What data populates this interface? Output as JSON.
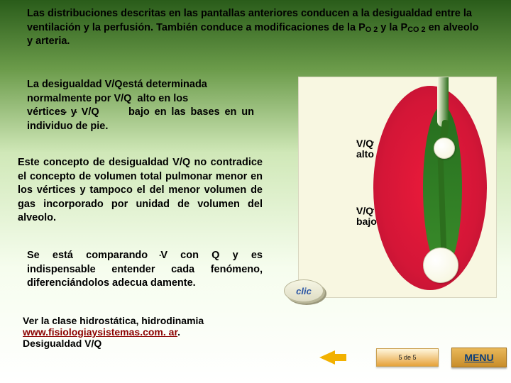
{
  "title": "Las distribuciones descritas en las pantallas anteriores conducen  a la desigualdad entre la ventilación y la perfusión. También conduce a modificaciones de la P",
  "title_sub1": "O 2",
  "title_mid": " y la P",
  "title_sub2": "CO 2",
  "title_end": " en alveolo y arteria.",
  "p1_a": "La desigualdad V/Q está determinada normalmente por V/Q alto en los vértices y V/Q     bajo en las bases en un individuo de pie.",
  "p2": "Este concepto de desigualdad V/Q no contradice el concepto de volumen total pulmonar menor en los vértices y tampoco el del menor volumen de gas incorporado por unidad de volumen del alveolo.",
  "p3": "Se está comparando V con Q y es indispensable entender cada fenómeno, diferenciándolos adecua damente.",
  "p4_a": " Ver la clase hidrostática, hidrodinamia",
  "link_text": "www.fisiologiaysistemas.com. ar",
  "p4_b": "Desigualdad V/Q",
  "vq_high": "V/Q\nalto",
  "vq_low": "V/Q\nbajo",
  "clic": "clic",
  "pager": "5 de 5",
  "menu": "MENU",
  "dot_pair": ".  ."
}
